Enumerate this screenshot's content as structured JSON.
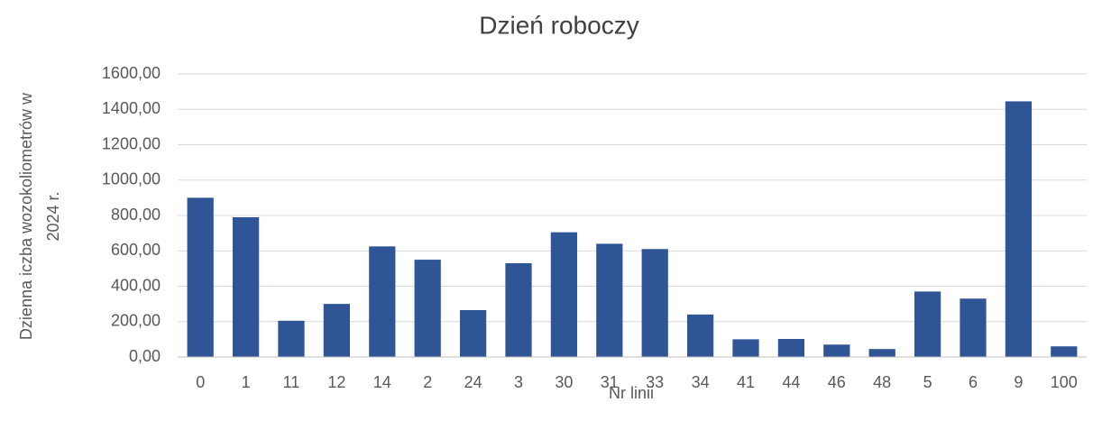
{
  "chart_data": {
    "type": "bar",
    "title": "Dzień roboczy",
    "x_label": "Nr linii",
    "y_label": [
      "Dzienna iczba wozokoliometrów w",
      "2024 r."
    ],
    "categories": [
      "0",
      "1",
      "11",
      "12",
      "14",
      "2",
      "24",
      "3",
      "30",
      "31",
      "33",
      "34",
      "41",
      "44",
      "46",
      "48",
      "5",
      "6",
      "9",
      "100"
    ],
    "values": [
      900,
      790,
      205,
      300,
      625,
      550,
      265,
      530,
      705,
      640,
      610,
      240,
      100,
      102,
      70,
      45,
      370,
      330,
      1445,
      60
    ],
    "color": "#2f5597",
    "ylim": [
      0,
      1600
    ],
    "yticks": [
      {
        "value": 0,
        "label": "0,00"
      },
      {
        "value": 200,
        "label": "200,00"
      },
      {
        "value": 400,
        "label": "400,00"
      },
      {
        "value": 600,
        "label": "600,00"
      },
      {
        "value": 800,
        "label": "800,00"
      },
      {
        "value": 1000,
        "label": "1000,00"
      },
      {
        "value": 1200,
        "label": "1200,00"
      },
      {
        "value": 1400,
        "label": "1400,00"
      },
      {
        "value": 1600,
        "label": "1600,00"
      }
    ],
    "grid": true
  }
}
